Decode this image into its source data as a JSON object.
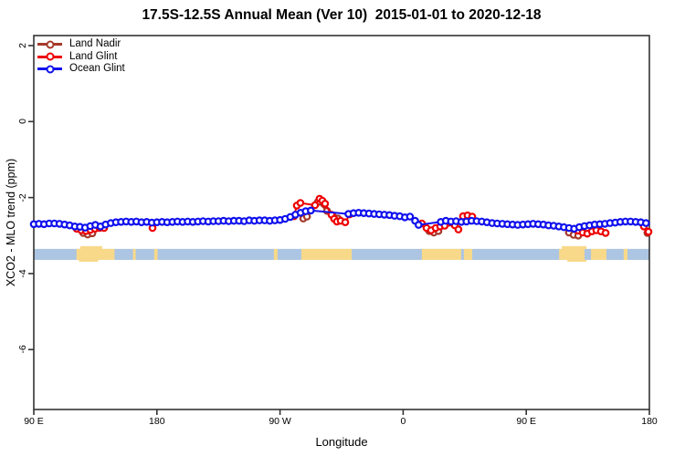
{
  "title": "17.5S-12.5S Annual Mean (Ver 10)  2015-01-01 to 2020-12-18",
  "legend": {
    "items": [
      {
        "label": "Land Nadir",
        "color": "#A5392B"
      },
      {
        "label": "Land Glint",
        "color": "#EE0000"
      },
      {
        "label": "Ocean Glint",
        "color": "#1010EE"
      }
    ]
  },
  "chart_data": {
    "type": "line",
    "title": "17.5S-12.5S Annual Mean (Ver 10)  2015-01-01 to 2020-12-18",
    "x_axis": {
      "label": "Longitude",
      "note": "x positions are degrees east of 90E along axis, wrapping 90E-180-90W-0-90E-180",
      "range_deg": [
        0,
        450
      ],
      "ticks": [
        {
          "deg": 0,
          "label": "90 E"
        },
        {
          "deg": 90,
          "label": "180"
        },
        {
          "deg": 180,
          "label": "90 W"
        },
        {
          "deg": 270,
          "label": "0"
        },
        {
          "deg": 360,
          "label": "90 E"
        },
        {
          "deg": 450,
          "label": "180"
        }
      ]
    },
    "y_axis": {
      "label": "XCO2 - MLO trend (ppm)",
      "range": [
        2.26,
        -7.58
      ],
      "ticks": [
        {
          "v": 2,
          "label": "2"
        },
        {
          "v": 0,
          "label": "0"
        },
        {
          "v": -2,
          "label": "-2"
        },
        {
          "v": -4,
          "label": "-4"
        },
        {
          "v": -6,
          "label": "-6"
        }
      ]
    },
    "series": [
      {
        "name": "Land Nadir",
        "color": "#A5392B",
        "clusters": [
          [
            [
              36.1,
              -2.93
            ],
            [
              39.4,
              -2.97
            ],
            [
              42.8,
              -2.94
            ]
          ],
          [
            [
              197.0,
              -2.55
            ],
            [
              199.7,
              -2.5
            ],
            [
              207.6,
              -2.12
            ],
            [
              214.3,
              -2.35
            ],
            [
              218.9,
              -2.5
            ],
            [
              222.3,
              -2.55
            ]
          ],
          [
            [
              289.1,
              -2.88
            ],
            [
              292.4,
              -2.92
            ],
            [
              295.8,
              -2.88
            ]
          ],
          [
            [
              391.2,
              -2.92
            ],
            [
              394.6,
              -2.98
            ],
            [
              398.0,
              -3.0
            ]
          ],
          [
            [
              448.6,
              -2.93
            ]
          ]
        ]
      },
      {
        "name": "Land Glint",
        "color": "#EE0000",
        "clusters": [
          [
            [
              31.4,
              -2.82
            ],
            [
              34.7,
              -2.86
            ],
            [
              38.1,
              -2.88
            ],
            [
              41.4,
              -2.85
            ],
            [
              44.7,
              -2.82
            ],
            [
              48.1,
              -2.8
            ],
            [
              51.4,
              -2.8
            ]
          ],
          [
            [
              86.8,
              -2.8
            ]
          ],
          [
            [
              190.3,
              -2.49
            ],
            [
              192.3,
              -2.21
            ],
            [
              194.9,
              -2.14
            ],
            [
              205.6,
              -2.2
            ],
            [
              208.9,
              -2.03
            ],
            [
              210.9,
              -2.08
            ],
            [
              212.9,
              -2.16
            ],
            [
              217.6,
              -2.45
            ],
            [
              219.6,
              -2.56
            ],
            [
              221.6,
              -2.63
            ],
            [
              224.3,
              -2.61
            ],
            [
              227.7,
              -2.65
            ],
            [
              231.0,
              -2.44
            ]
          ],
          [
            [
              283.7,
              -2.68
            ],
            [
              287.1,
              -2.8
            ],
            [
              290.4,
              -2.86
            ],
            [
              293.8,
              -2.8
            ],
            [
              297.1,
              -2.76
            ],
            [
              300.4,
              -2.74
            ],
            [
              307.8,
              -2.73
            ],
            [
              310.4,
              -2.84
            ]
          ],
          [
            [
              313.8,
              -2.49
            ],
            [
              317.1,
              -2.47
            ],
            [
              320.5,
              -2.5
            ]
          ],
          [
            [
              398.0,
              -2.87
            ],
            [
              401.2,
              -2.92
            ],
            [
              404.6,
              -2.95
            ],
            [
              408.0,
              -2.89
            ],
            [
              411.3,
              -2.86
            ],
            [
              414.6,
              -2.89
            ],
            [
              418.0,
              -2.93
            ]
          ],
          [
            [
              446.0,
              -2.76
            ],
            [
              449.3,
              -2.9
            ]
          ]
        ]
      },
      {
        "name": "Ocean Glint",
        "color": "#1010EE",
        "clusters": [
          [
            [
              0,
              -2.7
            ],
            [
              3.75,
              -2.69
            ],
            [
              7.5,
              -2.7
            ],
            [
              11.25,
              -2.68
            ],
            [
              15,
              -2.68
            ],
            [
              18.75,
              -2.69
            ],
            [
              22.5,
              -2.71
            ],
            [
              26.25,
              -2.73
            ],
            [
              30,
              -2.76
            ],
            [
              33.75,
              -2.77
            ],
            [
              37.5,
              -2.79
            ],
            [
              41.25,
              -2.75
            ],
            [
              45,
              -2.72
            ],
            [
              48.75,
              -2.76
            ],
            [
              52.5,
              -2.71
            ],
            [
              56.25,
              -2.67
            ],
            [
              60,
              -2.65
            ],
            [
              63.75,
              -2.64
            ],
            [
              67.5,
              -2.63
            ],
            [
              71.25,
              -2.64
            ],
            [
              75,
              -2.63
            ],
            [
              78.75,
              -2.65
            ],
            [
              82.5,
              -2.64
            ],
            [
              86.25,
              -2.66
            ],
            [
              90,
              -2.65
            ],
            [
              93.75,
              -2.64
            ],
            [
              97.5,
              -2.65
            ],
            [
              101.25,
              -2.64
            ],
            [
              105,
              -2.63
            ],
            [
              108.75,
              -2.64
            ],
            [
              112.5,
              -2.63
            ],
            [
              116.25,
              -2.64
            ],
            [
              120,
              -2.63
            ],
            [
              123.75,
              -2.62
            ],
            [
              127.5,
              -2.63
            ],
            [
              131.25,
              -2.62
            ],
            [
              135,
              -2.62
            ],
            [
              138.75,
              -2.61
            ],
            [
              142.5,
              -2.62
            ],
            [
              146.25,
              -2.61
            ],
            [
              150,
              -2.61
            ],
            [
              153.75,
              -2.62
            ],
            [
              157.5,
              -2.6
            ],
            [
              161.25,
              -2.61
            ],
            [
              165,
              -2.6
            ],
            [
              168.75,
              -2.6
            ],
            [
              172.5,
              -2.61
            ],
            [
              176.25,
              -2.6
            ],
            [
              180,
              -2.59
            ],
            [
              183.75,
              -2.56
            ],
            [
              187.5,
              -2.51
            ],
            [
              191.25,
              -2.45
            ],
            [
              195,
              -2.4
            ],
            [
              198.75,
              -2.36
            ],
            [
              202.5,
              -2.34
            ],
            [
              230,
              -2.43
            ],
            [
              233.75,
              -2.41
            ],
            [
              237.5,
              -2.4
            ],
            [
              241.25,
              -2.41
            ],
            [
              245,
              -2.42
            ],
            [
              248.75,
              -2.43
            ],
            [
              252.5,
              -2.44
            ],
            [
              256.25,
              -2.45
            ],
            [
              260,
              -2.46
            ],
            [
              263.75,
              -2.48
            ],
            [
              267.5,
              -2.49
            ],
            [
              271.25,
              -2.52
            ],
            [
              275,
              -2.5
            ],
            [
              278.75,
              -2.61
            ],
            [
              281.25,
              -2.72
            ],
            [
              297.5,
              -2.64
            ],
            [
              301.25,
              -2.61
            ],
            [
              305,
              -2.63
            ],
            [
              308.75,
              -2.62
            ],
            [
              312.5,
              -2.64
            ],
            [
              316.25,
              -2.63
            ],
            [
              320,
              -2.61
            ],
            [
              323.75,
              -2.62
            ],
            [
              327.5,
              -2.63
            ],
            [
              331.25,
              -2.65
            ],
            [
              335,
              -2.67
            ],
            [
              338.75,
              -2.68
            ],
            [
              342.5,
              -2.69
            ],
            [
              346.25,
              -2.7
            ],
            [
              350,
              -2.71
            ],
            [
              353.75,
              -2.72
            ],
            [
              357.5,
              -2.71
            ],
            [
              361.25,
              -2.7
            ],
            [
              365,
              -2.69
            ],
            [
              368.75,
              -2.7
            ],
            [
              372.5,
              -2.71
            ],
            [
              376.25,
              -2.73
            ],
            [
              380,
              -2.74
            ],
            [
              383.75,
              -2.76
            ],
            [
              387.5,
              -2.78
            ],
            [
              391.25,
              -2.8
            ],
            [
              395,
              -2.82
            ],
            [
              398.75,
              -2.78
            ],
            [
              402.5,
              -2.75
            ],
            [
              406.25,
              -2.73
            ],
            [
              410,
              -2.71
            ],
            [
              413.75,
              -2.7
            ],
            [
              417.5,
              -2.69
            ],
            [
              421.25,
              -2.67
            ],
            [
              425,
              -2.66
            ],
            [
              428.75,
              -2.64
            ],
            [
              432.5,
              -2.63
            ],
            [
              436.25,
              -2.63
            ],
            [
              440,
              -2.64
            ],
            [
              443.75,
              -2.65
            ],
            [
              447.5,
              -2.67
            ]
          ]
        ]
      }
    ],
    "map_strip": {
      "ocean_color": "#ACC5E2",
      "land_color": "#F8D98A",
      "y_range": [
        -3.35,
        -3.64
      ],
      "land_deg_ranges": [
        [
          31.2,
          59
        ],
        [
          72.5,
          74.5
        ],
        [
          88,
          90.5
        ],
        [
          175.5,
          178.2
        ],
        [
          195.6,
          232.4
        ],
        [
          283.7,
          312.4
        ],
        [
          314.4,
          320.5
        ],
        [
          384,
          402.6
        ],
        [
          407.3,
          418.6
        ],
        [
          431.2,
          434
        ]
      ],
      "land_bumps_above": [
        [
          34,
          50
        ],
        [
          386,
          404
        ]
      ],
      "land_bumps_below": [
        [
          33,
          47
        ],
        [
          390,
          404
        ]
      ]
    }
  }
}
